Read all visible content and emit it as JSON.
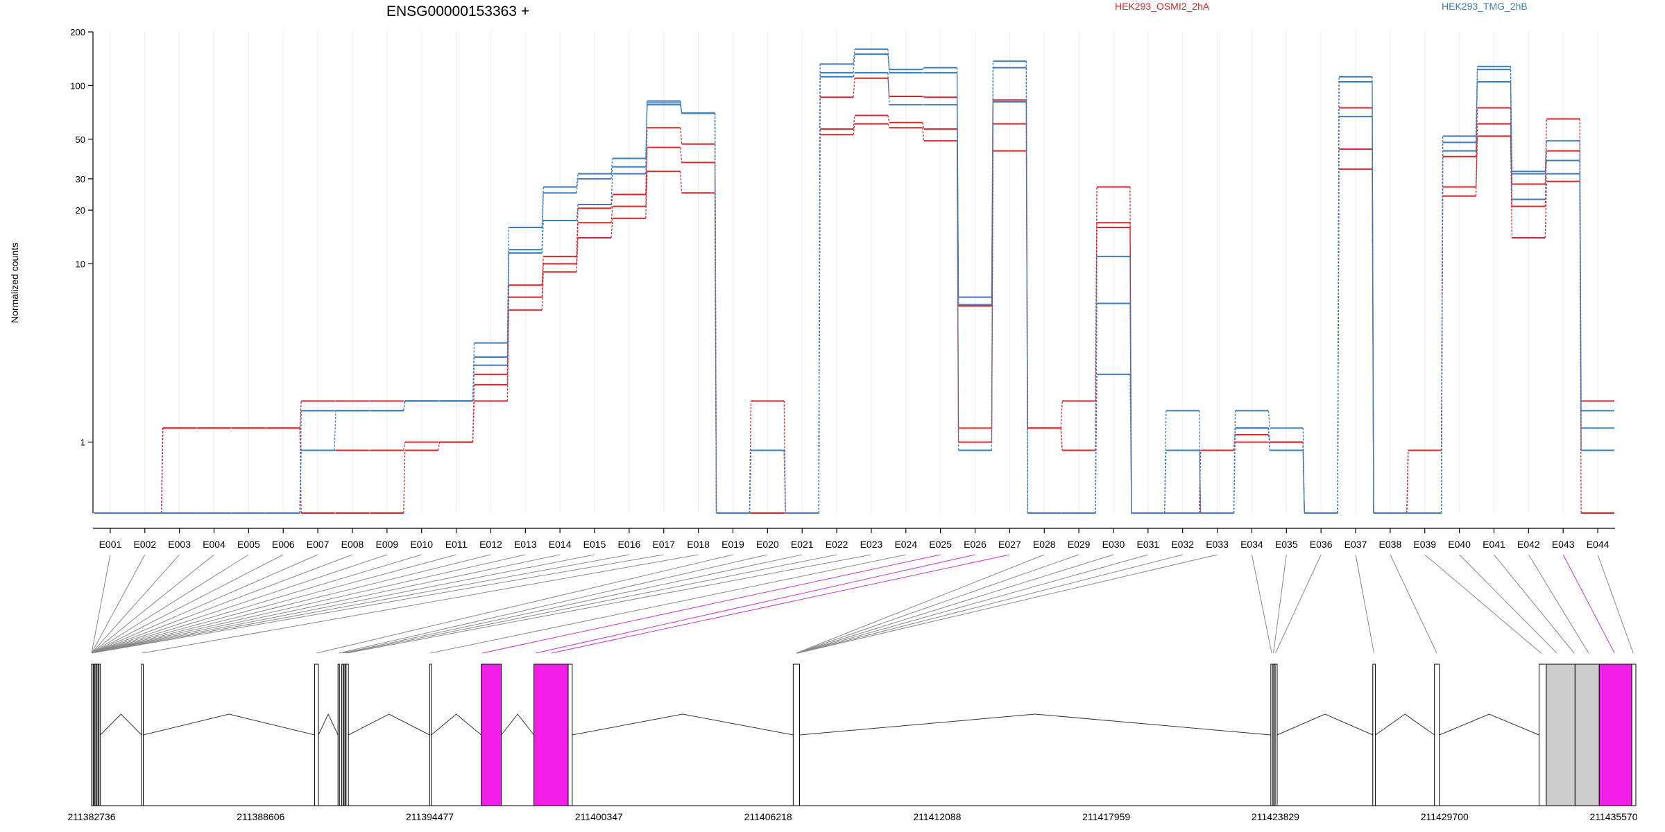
{
  "title": "ENSG00000153363 +",
  "legend": [
    {
      "label": "HEK293_OSMI2_2hA",
      "color": "#d7262c"
    },
    {
      "label": "HEK293_TMG_2hB",
      "color": "#3b7bbf"
    }
  ],
  "chart_data": {
    "type": "line",
    "title": "ENSG00000153363 +",
    "ylabel": "Normalized counts",
    "yscale": "log",
    "ylim": [
      0.4,
      200
    ],
    "yticks": [
      1,
      10,
      20,
      30,
      50,
      100,
      200
    ],
    "categories": [
      "E001",
      "E002",
      "E003",
      "E004",
      "E005",
      "E006",
      "E007",
      "E008",
      "E009",
      "E010",
      "E011",
      "E012",
      "E013",
      "E014",
      "E015",
      "E016",
      "E017",
      "E018",
      "E019",
      "E020",
      "E021",
      "E022",
      "E023",
      "E024",
      "E025",
      "E026",
      "E027",
      "E028",
      "E029",
      "E030",
      "E031",
      "E032",
      "E033",
      "E034",
      "E035",
      "E036",
      "E037",
      "E038",
      "E039",
      "E040",
      "E041",
      "E042",
      "E043",
      "E044"
    ],
    "series": [
      {
        "name": "HEK293_OSMI2_2hA",
        "color": "#d7262c",
        "values": [
          0.4,
          0.4,
          1.2,
          1.2,
          1.2,
          1.2,
          1.7,
          1.7,
          1.7,
          1.7,
          1.7,
          2.4,
          7.6,
          11.0,
          20.5,
          24.5,
          58.0,
          47.0,
          0.4,
          1.7,
          0.4,
          86.0,
          110.0,
          87.0,
          86.0,
          5.8,
          83.0,
          1.2,
          1.7,
          27.0,
          0.4,
          0.4,
          0.9,
          1.2,
          1.0,
          0.4,
          75.0,
          0.4,
          0.9,
          40.0,
          75.0,
          28.0,
          65.0,
          1.7
        ]
      },
      {
        "name": "HEK293_OSMI2_2hA",
        "color": "#d7262c",
        "values": [
          0.4,
          0.4,
          1.2,
          1.2,
          1.2,
          1.2,
          0.9,
          0.9,
          0.9,
          1.0,
          1.0,
          2.1,
          6.5,
          10.0,
          17.0,
          21.0,
          45.0,
          37.0,
          0.4,
          0.4,
          0.4,
          57.0,
          68.0,
          62.0,
          57.0,
          1.2,
          61.0,
          1.2,
          0.9,
          17.0,
          0.4,
          0.4,
          0.9,
          1.1,
          1.0,
          0.4,
          44.0,
          0.4,
          0.9,
          27.0,
          61.0,
          21.0,
          43.0,
          0.9
        ]
      },
      {
        "name": "HEK293_OSMI2_2hA",
        "color": "#d7262c",
        "values": [
          0.4,
          0.4,
          1.2,
          1.2,
          1.2,
          1.2,
          0.4,
          0.4,
          0.4,
          0.9,
          1.0,
          1.7,
          5.5,
          9.0,
          14.0,
          18.0,
          33.0,
          25.0,
          0.4,
          0.4,
          0.4,
          53.0,
          61.0,
          58.0,
          49.0,
          1.0,
          43.0,
          1.2,
          0.9,
          16.0,
          0.4,
          0.4,
          0.9,
          1.0,
          1.0,
          0.4,
          34.0,
          0.4,
          0.9,
          24.0,
          52.0,
          14.0,
          29.0,
          0.4
        ]
      },
      {
        "name": "HEK293_TMG_2hB",
        "color": "#3b7bbf",
        "values": [
          0.4,
          0.4,
          0.4,
          0.4,
          0.4,
          0.4,
          1.5,
          1.5,
          1.5,
          1.7,
          1.7,
          3.6,
          16.0,
          27.0,
          32.0,
          39.0,
          82.0,
          70.0,
          0.4,
          0.9,
          0.4,
          132.0,
          160.0,
          123.0,
          126.0,
          6.5,
          137.0,
          0.4,
          0.4,
          11.0,
          0.4,
          1.5,
          0.4,
          1.5,
          1.2,
          0.4,
          112.0,
          0.4,
          0.4,
          52.0,
          128.0,
          33.0,
          49.0,
          1.5
        ]
      },
      {
        "name": "HEK293_TMG_2hB",
        "color": "#3b7bbf",
        "values": [
          0.4,
          0.4,
          0.4,
          0.4,
          0.4,
          0.4,
          1.5,
          1.5,
          1.5,
          1.7,
          1.7,
          3.0,
          12.0,
          25.0,
          30.0,
          35.0,
          80.0,
          70.0,
          0.4,
          0.9,
          0.4,
          118.0,
          150.0,
          118.0,
          118.0,
          5.9,
          126.0,
          0.4,
          0.4,
          6.0,
          0.4,
          0.9,
          0.4,
          1.2,
          0.9,
          0.4,
          105.0,
          0.4,
          0.4,
          48.0,
          123.0,
          32.0,
          38.0,
          1.2
        ]
      },
      {
        "name": "HEK293_TMG_2hB",
        "color": "#3b7bbf",
        "values": [
          0.4,
          0.4,
          0.4,
          0.4,
          0.4,
          0.4,
          0.9,
          1.5,
          1.5,
          1.7,
          1.7,
          2.7,
          11.5,
          17.5,
          21.5,
          32.0,
          78.0,
          70.0,
          0.4,
          0.9,
          0.4,
          112.0,
          118.0,
          78.0,
          78.0,
          0.9,
          81.0,
          0.4,
          0.4,
          2.4,
          0.4,
          0.4,
          0.4,
          1.2,
          0.9,
          0.4,
          67.0,
          0.4,
          0.4,
          43.0,
          105.0,
          23.0,
          32.0,
          0.9
        ]
      }
    ]
  },
  "gene_model": {
    "genomic_ticks": [
      "211382736",
      "211388606",
      "211394477",
      "211400347",
      "211406218",
      "211412088",
      "211417959",
      "211423829",
      "211429700",
      "211435570"
    ],
    "line_color": "#888888",
    "highlight_line_color": "#cc33cc",
    "exon_fill": "#ffffff",
    "highlight_fill": "#f01ee6",
    "gray_fill": "#cccccc"
  }
}
